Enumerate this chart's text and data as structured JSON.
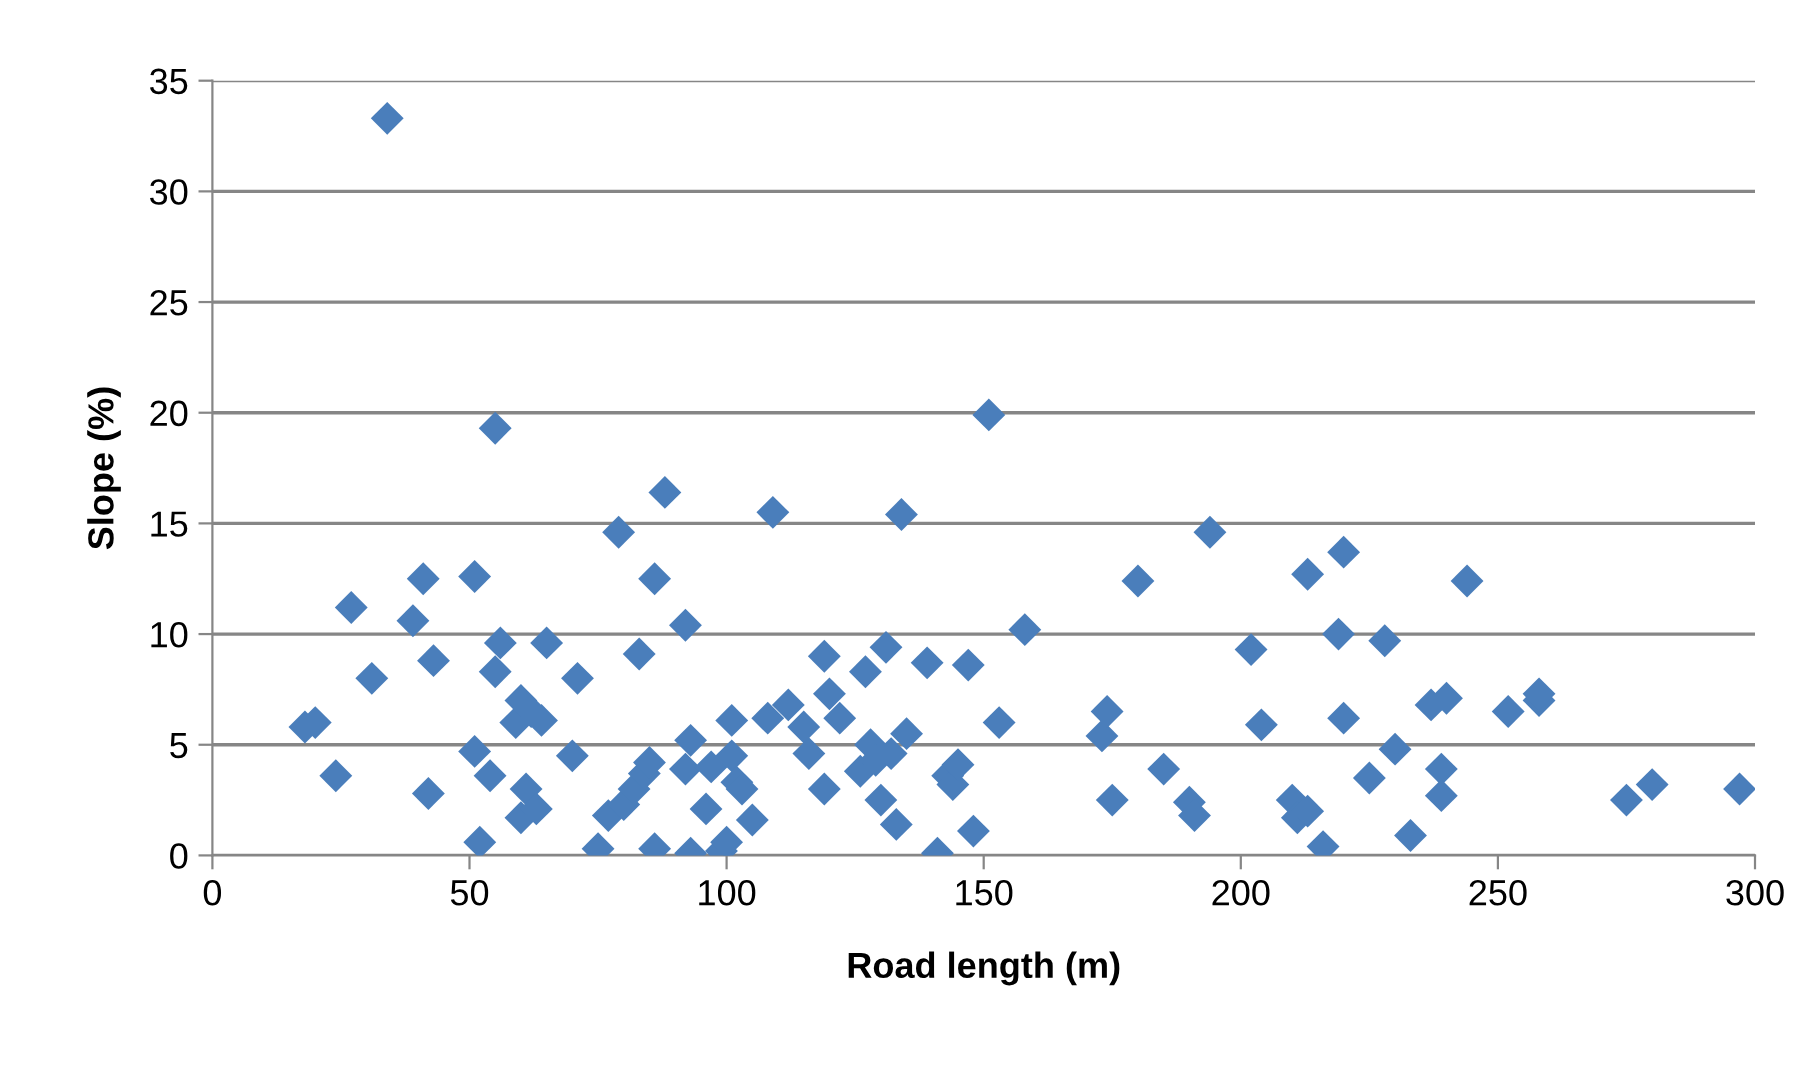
{
  "chart_data": {
    "type": "scatter",
    "xlabel": "Road length (m)",
    "ylabel": "Slope (%)",
    "x": [
      18,
      20,
      24,
      27,
      31,
      34,
      39,
      41,
      42,
      43,
      51,
      51,
      52,
      54,
      55,
      55,
      56,
      59,
      60,
      60,
      61,
      62,
      63,
      64,
      65,
      70,
      71,
      75,
      77,
      79,
      80,
      82,
      83,
      84,
      85,
      86,
      86,
      88,
      92,
      92,
      93,
      93,
      96,
      97,
      99,
      100,
      101,
      101,
      102,
      103,
      105,
      108,
      109,
      112,
      115,
      116,
      119,
      119,
      120,
      122,
      126,
      127,
      128,
      129,
      130,
      131,
      132,
      133,
      134,
      135,
      139,
      141,
      143,
      144,
      145,
      147,
      148,
      151,
      153,
      158,
      173,
      174,
      175,
      180,
      185,
      190,
      191,
      194,
      202,
      204,
      210,
      211,
      213,
      213,
      216,
      219,
      220,
      220,
      225,
      228,
      230,
      233,
      237,
      239,
      239,
      240,
      244,
      252,
      258,
      258,
      275,
      280,
      297
    ],
    "series": [
      {
        "color": "#4a7ebb",
        "values": [
          5.8,
          6.0,
          3.6,
          11.2,
          8.0,
          33.3,
          10.6,
          12.5,
          2.8,
          8.8,
          12.6,
          4.7,
          0.6,
          3.6,
          19.3,
          8.3,
          9.6,
          6.0,
          7.0,
          1.7,
          3.0,
          6.5,
          2.1,
          6.1,
          9.6,
          4.5,
          8.0,
          0.3,
          1.8,
          14.6,
          2.3,
          3.0,
          9.1,
          3.7,
          4.2,
          0.3,
          12.5,
          16.4,
          10.4,
          3.9,
          5.2,
          0.1,
          2.1,
          4.0,
          0.2,
          0.6,
          4.5,
          6.1,
          3.3,
          3.0,
          1.6,
          6.2,
          15.5,
          6.8,
          5.8,
          4.6,
          9.0,
          3.0,
          7.3,
          6.2,
          3.8,
          8.3,
          5.0,
          4.3,
          2.5,
          9.4,
          4.6,
          1.4,
          15.4,
          5.5,
          8.7,
          0.1,
          3.6,
          3.2,
          4.1,
          8.6,
          1.1,
          19.9,
          6.0,
          10.2,
          5.4,
          6.5,
          2.5,
          12.4,
          3.9,
          2.4,
          1.8,
          14.6,
          9.3,
          5.9,
          2.5,
          1.7,
          2.0,
          12.7,
          0.4,
          10.0,
          13.7,
          6.2,
          3.5,
          9.7,
          4.8,
          0.9,
          6.8,
          3.9,
          2.7,
          7.1,
          12.4,
          6.5,
          7.0,
          7.3,
          2.5,
          3.2,
          3.0
        ]
      }
    ],
    "xlim": [
      0,
      300
    ],
    "xticks": [
      0,
      50,
      100,
      150,
      200,
      250,
      300
    ],
    "ylim": [
      0,
      35
    ],
    "yticks": [
      0,
      5,
      10,
      15,
      20,
      25,
      30,
      35
    ],
    "grid": "y",
    "marker": "diamond",
    "legend": false
  }
}
